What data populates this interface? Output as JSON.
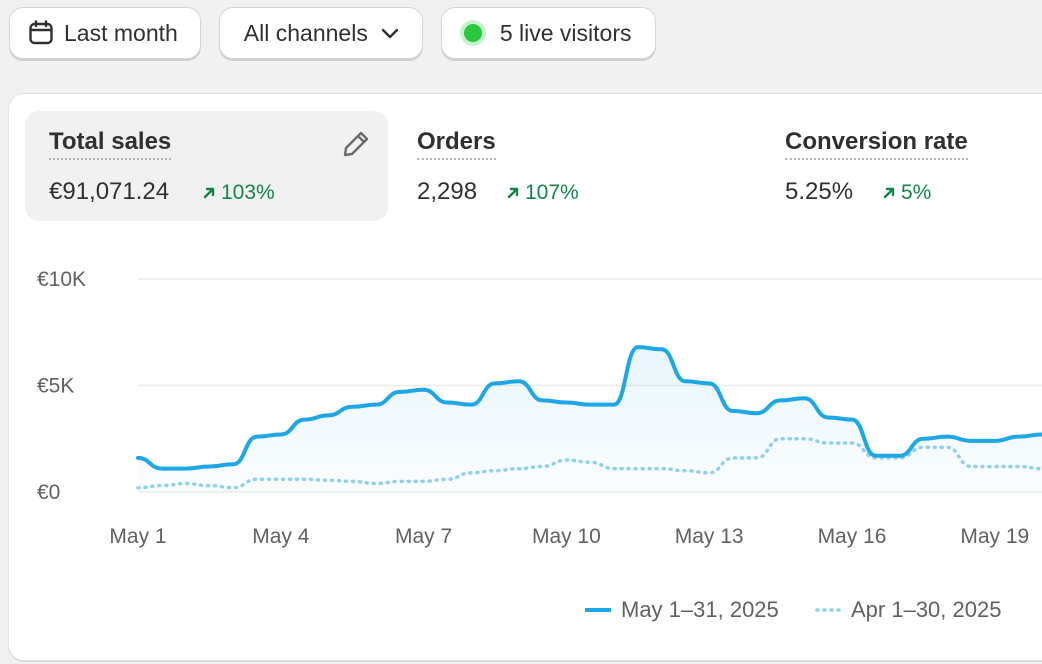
{
  "toolbar": {
    "date_label": "Last month",
    "channel_label": "All channels",
    "live_label": "5 live visitors"
  },
  "metrics": [
    {
      "label": "Total sales",
      "value": "€91,071.24",
      "delta": "103%",
      "active": true
    },
    {
      "label": "Orders",
      "value": "2,298",
      "delta": "107%"
    },
    {
      "label": "Conversion rate",
      "value": "5.25%",
      "delta": "5%"
    }
  ],
  "colors": {
    "accent": "#1ea7e4",
    "positive": "#14854a",
    "live": "#29c93d",
    "comparison": "#8fd0ee"
  },
  "icons": {
    "date": "calendar-icon",
    "channel": "chevron-down-icon",
    "live": "live-dot-icon",
    "edit": "pencil-icon",
    "delta": "arrow-up-right-icon"
  },
  "chart_data": {
    "type": "line",
    "y_ticks": [
      "€0",
      "€5K",
      "€10K"
    ],
    "ylim": [
      0,
      10000
    ],
    "x_ticks": [
      "May 1",
      "May 4",
      "May 7",
      "May 10",
      "May 13",
      "May 16",
      "May 19"
    ],
    "x_tick_days": [
      1,
      4,
      7,
      10,
      13,
      16,
      19
    ],
    "grid": true,
    "legend_placement": "bottom-right",
    "series": [
      {
        "name": "May 1–31, 2025",
        "style": "solid",
        "x": [
          1,
          1.5,
          2,
          2.5,
          3,
          3.5,
          4,
          4.5,
          5,
          5.5,
          6,
          6.5,
          7,
          7.5,
          8,
          8.5,
          9,
          9.5,
          10,
          10.5,
          11,
          11.5,
          12,
          12.5,
          13,
          13.5,
          14,
          14.5,
          15,
          15.5,
          16,
          16.5,
          17,
          17.5,
          18,
          18.5,
          19,
          19.5,
          20
        ],
        "values": [
          1600,
          1100,
          1100,
          1200,
          1300,
          2600,
          2700,
          3400,
          3600,
          4000,
          4100,
          4700,
          4800,
          4200,
          4100,
          5100,
          5200,
          4300,
          4200,
          4100,
          4100,
          6800,
          6700,
          5200,
          5100,
          3800,
          3700,
          4300,
          4400,
          3500,
          3400,
          1700,
          1700,
          2500,
          2600,
          2400,
          2400,
          2600,
          2700
        ]
      },
      {
        "name": "Apr 1–30, 2025",
        "style": "dotted",
        "x": [
          1,
          1.5,
          2,
          2.5,
          3,
          3.5,
          4,
          4.5,
          5,
          5.5,
          6,
          6.5,
          7,
          7.5,
          8,
          8.5,
          9,
          9.5,
          10,
          10.5,
          11,
          11.5,
          12,
          12.5,
          13,
          13.5,
          14,
          14.5,
          15,
          15.5,
          16,
          16.5,
          17,
          17.5,
          18,
          18.5,
          19,
          19.5,
          20
        ],
        "values": [
          200,
          300,
          400,
          300,
          200,
          600,
          600,
          600,
          550,
          500,
          400,
          500,
          500,
          600,
          900,
          1000,
          1100,
          1200,
          1500,
          1400,
          1100,
          1100,
          1100,
          1000,
          900,
          1600,
          1600,
          2500,
          2500,
          2300,
          2300,
          1600,
          1600,
          2100,
          2100,
          1200,
          1200,
          1200,
          1100
        ]
      }
    ]
  }
}
